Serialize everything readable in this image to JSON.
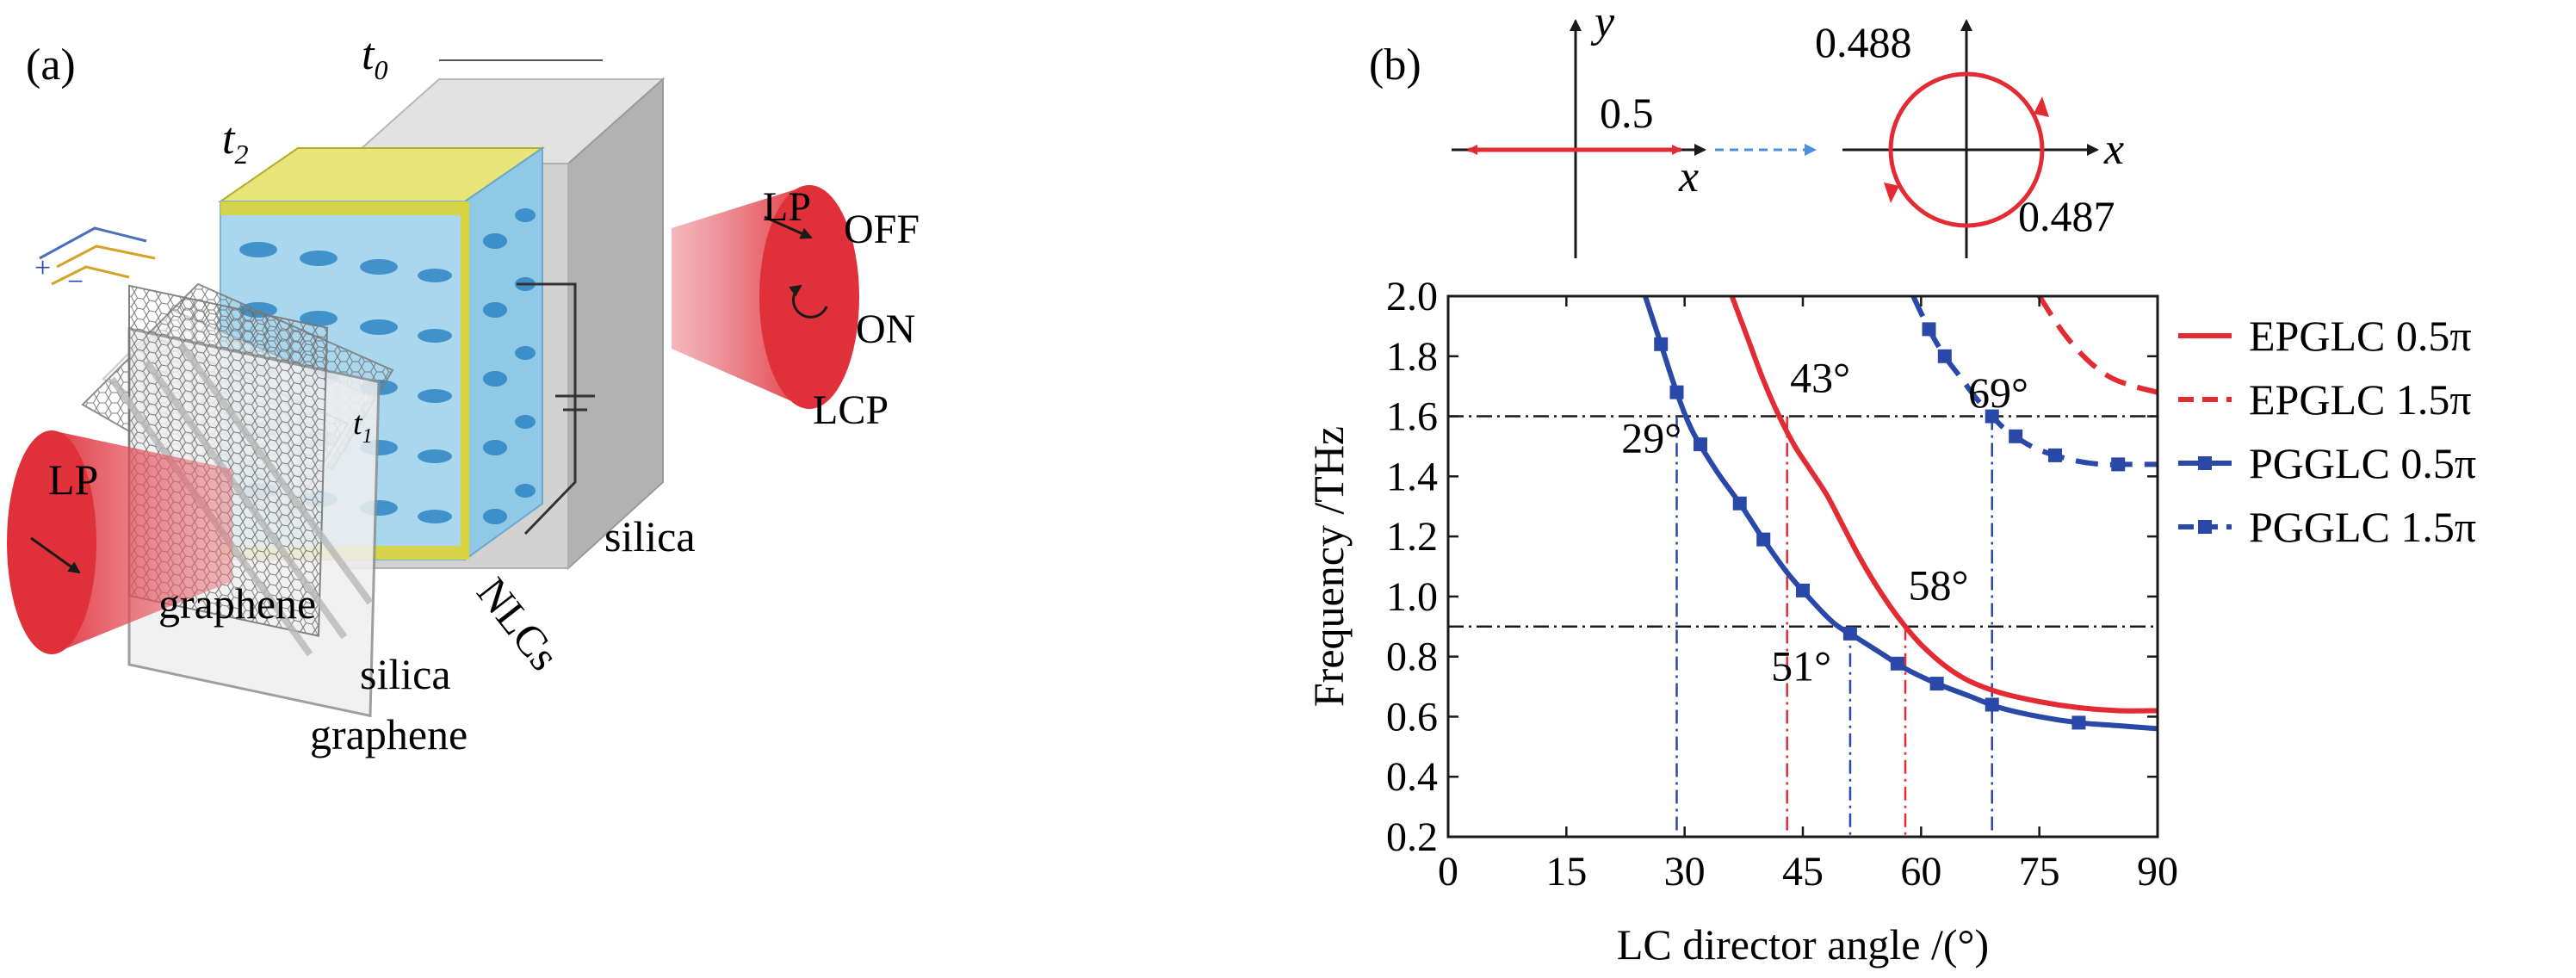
{
  "panel_a": {
    "panel_label": "(a)",
    "labels": {
      "t0": "t",
      "t0_sub": "0",
      "t2": "t",
      "t2_sub": "2",
      "t1": "t",
      "t1_sub": "1",
      "lp_in": "LP",
      "lp_out": "LP",
      "off": "OFF",
      "on": "ON",
      "lcp": "LCP",
      "silica_top": "silica",
      "graphene_1": "graphene",
      "silica_mid": "silica",
      "graphene_2": "graphene",
      "nlcs": "NLCs",
      "plus": "+",
      "minus": "−"
    },
    "colors": {
      "beam": "#e0303a",
      "gold": "#d8d23c",
      "lc_blue": "#7fc3e8",
      "silica_gray": "#c8c8c8"
    }
  },
  "panel_b": {
    "panel_label": "(b)",
    "inset_left": {
      "x_label": "x",
      "y_label": "y",
      "value": "0.5"
    },
    "inset_right": {
      "x_label": "x",
      "value_top": "0.488",
      "value_bottom": "0.487"
    },
    "colors": {
      "red": "#e32b33",
      "blue": "#2a48a8",
      "arrow_blue": "#4a90d9"
    }
  },
  "chart_data": {
    "type": "line",
    "xlabel": "LC director angle /(°)",
    "ylabel": "Frequency /THz",
    "xlim": [
      0,
      90
    ],
    "ylim": [
      0.2,
      2.0
    ],
    "xticks": [
      "0",
      "15",
      "30",
      "45",
      "60",
      "75",
      "90"
    ],
    "yticks": [
      "0.2",
      "0.4",
      "0.6",
      "0.8",
      "1.0",
      "1.2",
      "1.4",
      "1.6",
      "1.8",
      "2.0"
    ],
    "legend_position": "right, outside",
    "series": [
      {
        "name": "EPGLC 0.5π",
        "color": "#e32b33",
        "dash": "solid",
        "marker": "none",
        "x": [
          36,
          38,
          40,
          42,
          44,
          46,
          48,
          50,
          52,
          54,
          56,
          58,
          60,
          63,
          66,
          70,
          75,
          80,
          85,
          90
        ],
        "y": [
          2.0,
          1.86,
          1.72,
          1.6,
          1.5,
          1.42,
          1.34,
          1.24,
          1.14,
          1.05,
          0.97,
          0.9,
          0.84,
          0.77,
          0.72,
          0.68,
          0.65,
          0.63,
          0.62,
          0.62
        ]
      },
      {
        "name": "EPGLC 1.5π",
        "color": "#e32b33",
        "dash": "dashed",
        "marker": "none",
        "x": [
          75,
          78,
          81,
          84,
          87,
          90
        ],
        "y": [
          2.0,
          1.88,
          1.79,
          1.73,
          1.7,
          1.68
        ]
      },
      {
        "name": "PGGLC 0.5π",
        "color": "#2a48a8",
        "dash": "solid",
        "marker": "square",
        "x": [
          25,
          27,
          29,
          31,
          34,
          37,
          40,
          43,
          46,
          49,
          52,
          55,
          58,
          62,
          66,
          70,
          75,
          80,
          85,
          90
        ],
        "y": [
          2.0,
          1.84,
          1.68,
          1.55,
          1.42,
          1.31,
          1.19,
          1.08,
          0.99,
          0.91,
          0.86,
          0.81,
          0.76,
          0.71,
          0.67,
          0.63,
          0.6,
          0.58,
          0.57,
          0.56
        ],
        "markers_x": [
          27,
          29,
          32,
          37,
          40,
          45,
          51,
          57,
          62,
          69,
          80
        ]
      },
      {
        "name": "PGGLC 1.5π",
        "color": "#2a48a8",
        "dash": "dashed",
        "marker": "square",
        "x": [
          59,
          61,
          63,
          65,
          67,
          69,
          71,
          74,
          77,
          80,
          83,
          86,
          90
        ],
        "y": [
          2.0,
          1.89,
          1.8,
          1.73,
          1.66,
          1.6,
          1.55,
          1.5,
          1.47,
          1.45,
          1.44,
          1.44,
          1.44
        ],
        "markers_x": [
          61,
          63,
          69,
          72,
          77,
          85
        ]
      }
    ],
    "reference_lines": {
      "horizontal": [
        1.6,
        0.9
      ],
      "vertical": [
        {
          "x": 29,
          "color": "#2a48a8"
        },
        {
          "x": 43,
          "color": "#e32b33"
        },
        {
          "x": 51,
          "color": "#2a48a8"
        },
        {
          "x": 58,
          "color": "#e32b33"
        },
        {
          "x": 69,
          "color": "#2a48a8"
        }
      ]
    },
    "annotations": [
      {
        "text": "29°",
        "x": 25.8,
        "y": 1.48
      },
      {
        "text": "43°",
        "x": 47.2,
        "y": 1.68
      },
      {
        "text": "51°",
        "x": 44.8,
        "y": 0.72
      },
      {
        "text": "58°",
        "x": 62.2,
        "y": 0.99
      },
      {
        "text": "69°",
        "x": 69.8,
        "y": 1.63
      }
    ]
  }
}
